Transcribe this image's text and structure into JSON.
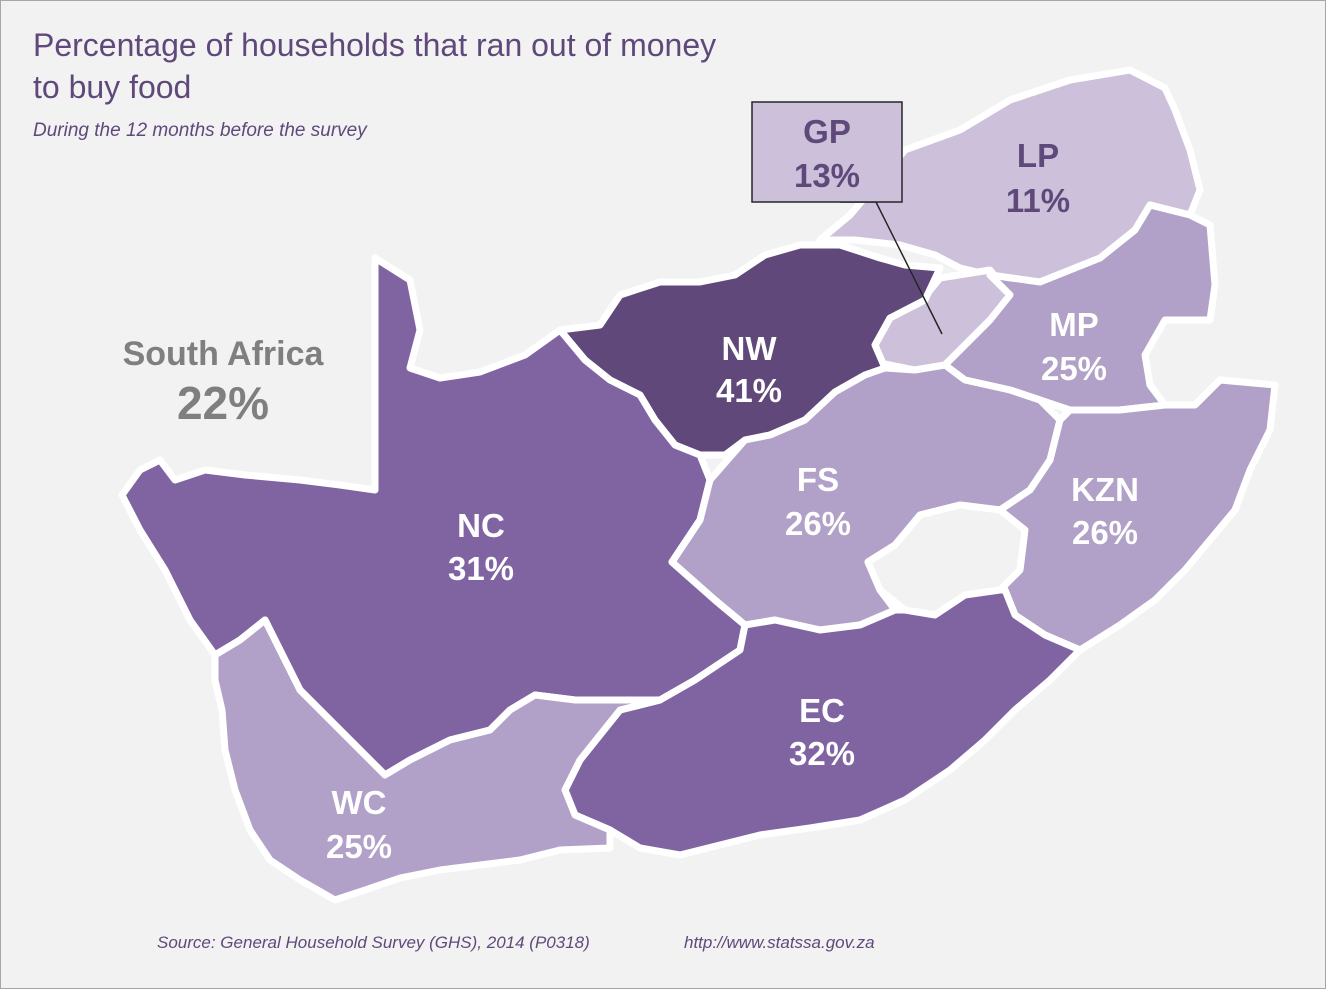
{
  "title": "Percentage of households that ran out of money to buy food",
  "subtitle": "During the 12 months before the survey",
  "national": {
    "name": "South Africa",
    "value": "22%"
  },
  "colors": {
    "background": "#f2f2f2",
    "text_accent": "#5f497a",
    "national_text": "#7f7f7f",
    "shade_11_13": "#ccc0da",
    "shade_25_26": "#b1a0c7",
    "shade_31_32": "#8064a2",
    "shade_41": "#60497a",
    "lesotho": "#f2f2f2",
    "border": "#ffffff"
  },
  "provinces": [
    {
      "code": "LP",
      "value": "11%",
      "percent": 11
    },
    {
      "code": "GP",
      "value": "13%",
      "percent": 13
    },
    {
      "code": "NW",
      "value": "41%",
      "percent": 41
    },
    {
      "code": "MP",
      "value": "25%",
      "percent": 25
    },
    {
      "code": "NC",
      "value": "31%",
      "percent": 31
    },
    {
      "code": "FS",
      "value": "26%",
      "percent": 26
    },
    {
      "code": "KZN",
      "value": "26%",
      "percent": 26
    },
    {
      "code": "EC",
      "value": "32%",
      "percent": 32
    },
    {
      "code": "WC",
      "value": "25%",
      "percent": 25
    }
  ],
  "footer": {
    "source": "Source: General Household Survey (GHS), 2014 (P0318)",
    "url": "http://www.statssa.gov.za"
  }
}
